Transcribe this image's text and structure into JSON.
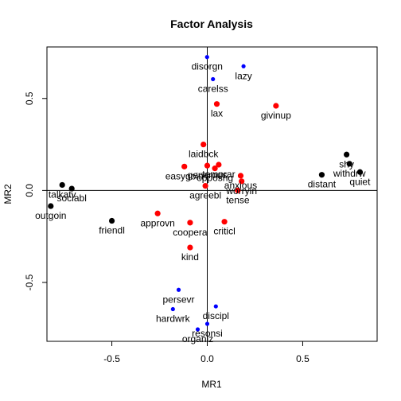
{
  "chart_data": {
    "type": "scatter",
    "title": "Factor Analysis",
    "xlabel": "MR1",
    "ylabel": "MR2",
    "xlim": [
      -0.84,
      0.89
    ],
    "ylim": [
      -0.82,
      0.78
    ],
    "xticks": [
      -0.5,
      0.0,
      0.5
    ],
    "xtick_labels": [
      "-0.5",
      "0.0",
      "0.5"
    ],
    "yticks": [
      -0.5,
      0.0,
      0.5
    ],
    "ytick_labels": [
      "-0.5",
      "0.0",
      "0.5"
    ],
    "reference_lines": {
      "x": 0,
      "y": 0
    },
    "grid": false,
    "legend": "none",
    "colors": {
      "black": "#000000",
      "red": "#ff0000",
      "blue": "#0000ff"
    },
    "points": [
      {
        "label": "disorgn",
        "x": -0.001,
        "y": 0.725,
        "color": "blue"
      },
      {
        "label": "lazy",
        "x": 0.19,
        "y": 0.675,
        "color": "blue"
      },
      {
        "label": "carelss",
        "x": 0.03,
        "y": 0.605,
        "color": "blue"
      },
      {
        "label": "lax",
        "x": 0.05,
        "y": 0.47,
        "color": "red"
      },
      {
        "label": "givinup",
        "x": 0.36,
        "y": 0.46,
        "color": "red"
      },
      {
        "label": "laidbck",
        "x": -0.02,
        "y": 0.25,
        "color": "red"
      },
      {
        "label": "easygoin",
        "x": -0.12,
        "y": 0.13,
        "color": "red"
      },
      {
        "label": "generous",
        "x": 0.0,
        "y": 0.135,
        "color": "red"
      },
      {
        "label": "temprar",
        "x": 0.06,
        "y": 0.14,
        "color": "red"
      },
      {
        "label": "opposng",
        "x": 0.04,
        "y": 0.12,
        "color": "red"
      },
      {
        "label": "anxious",
        "x": 0.175,
        "y": 0.08,
        "color": "red"
      },
      {
        "label": "worryin",
        "x": 0.18,
        "y": 0.05,
        "color": "red"
      },
      {
        "label": "tense",
        "x": 0.16,
        "y": 0.0,
        "color": "red"
      },
      {
        "label": "agreebl",
        "x": -0.01,
        "y": 0.025,
        "color": "red"
      },
      {
        "label": "approvn",
        "x": -0.26,
        "y": -0.125,
        "color": "red"
      },
      {
        "label": "coopera",
        "x": -0.09,
        "y": -0.175,
        "color": "red"
      },
      {
        "label": "criticl",
        "x": 0.09,
        "y": -0.17,
        "color": "red"
      },
      {
        "label": "kind",
        "x": -0.09,
        "y": -0.31,
        "color": "red"
      },
      {
        "label": "shy",
        "x": 0.73,
        "y": 0.195,
        "color": "black"
      },
      {
        "label": "withdrw",
        "x": 0.745,
        "y": 0.145,
        "color": "black"
      },
      {
        "label": "quiet",
        "x": 0.8,
        "y": 0.1,
        "color": "black"
      },
      {
        "label": "distant",
        "x": 0.6,
        "y": 0.085,
        "color": "black"
      },
      {
        "label": "talkatv",
        "x": -0.76,
        "y": 0.03,
        "color": "black"
      },
      {
        "label": "sociabl",
        "x": -0.71,
        "y": 0.01,
        "color": "black"
      },
      {
        "label": "outgoin",
        "x": -0.82,
        "y": -0.085,
        "color": "black"
      },
      {
        "label": "friendl",
        "x": -0.5,
        "y": -0.165,
        "color": "black"
      },
      {
        "label": "persevr",
        "x": -0.15,
        "y": -0.54,
        "color": "blue"
      },
      {
        "label": "hardwrk",
        "x": -0.18,
        "y": -0.645,
        "color": "blue"
      },
      {
        "label": "discipl",
        "x": 0.045,
        "y": -0.63,
        "color": "blue"
      },
      {
        "label": "resonsi",
        "x": 0.0,
        "y": -0.725,
        "color": "blue"
      },
      {
        "label": "organiz",
        "x": -0.05,
        "y": -0.755,
        "color": "blue"
      }
    ]
  }
}
